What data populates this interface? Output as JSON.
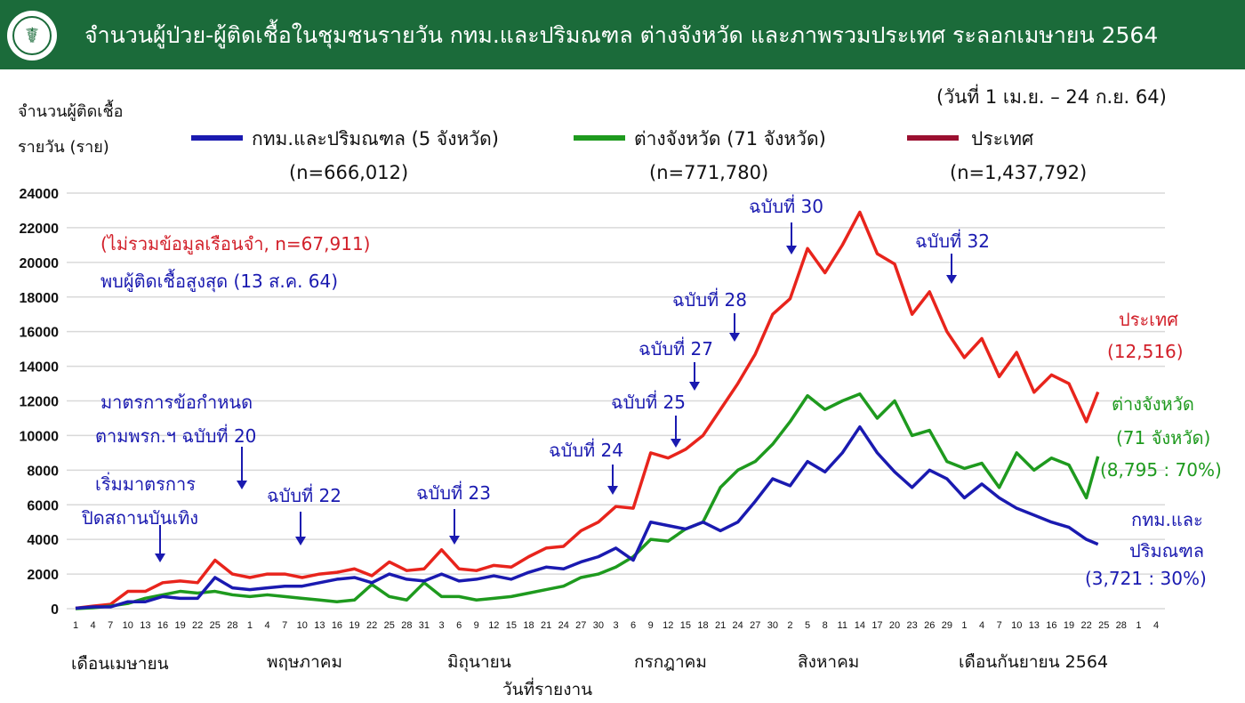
{
  "header": {
    "title": "จำนวนผู้ป่วย-ผู้ติดเชื้อในชุมชนรายวัน กทม.และปริมณฑล ต่างจังหวัด และภาพรวมประเทศ ระลอกเมษายน 2564",
    "logo_text": "กระทรวงสาธารณสุข MINISTRY OF PUBLIC HEALTH"
  },
  "period": "(วันที่ 1 เม.ย. – 24 ก.ย. 64)",
  "ylabel_line1": "จำนวนผู้ติดเชื้อ",
  "ylabel_line2": "รายวัน (ราย)",
  "legend": [
    {
      "label": "กทม.และปริมณฑล (5 จังหวัด)",
      "n": "(n=666,012)",
      "color": "#1a1ab0"
    },
    {
      "label": "ต่างจังหวัด (71 จังหวัด)",
      "n": "(n=771,780)",
      "color": "#1e9a1e"
    },
    {
      "label": "ประเทศ",
      "n": "(n=1,437,792)",
      "color": "#9b1030"
    }
  ],
  "notes": {
    "excluded": "(ไม่รวมข้อมูลเรือนจำ, n=67,911)",
    "peak": "พบผู้ติดเชื้อสูงสุด (13 ส.ค. 64)"
  },
  "annotations": {
    "m20_a": "มาตรการข้อกำหนด",
    "m20_b": "ตามพรก.ฯ ฉบับที่ 20",
    "ent_a": "เริ่มมาตรการ",
    "ent_b": "ปิดสถานบันเทิง",
    "a22": "ฉบับที่ 22",
    "a23": "ฉบับที่ 23",
    "a24": "ฉบับที่ 24",
    "a25": "ฉบับที่ 25",
    "a27": "ฉบับที่ 27",
    "a28": "ฉบับที่ 28",
    "a30": "ฉบับที่ 30",
    "a32": "ฉบับที่ 32"
  },
  "end_labels": {
    "national": "ประเทศ",
    "national_val": "(12,516)",
    "prov_a": "ต่างจังหวัด",
    "prov_b": "(71 จังหวัด)",
    "prov_val": "(8,795 : 70%)",
    "bkk_a": "กทม.และ",
    "bkk_b": "ปริมณฑล",
    "bkk_val": "(3,721 : 30%)"
  },
  "months": [
    "เดือนเมษายน",
    "พฤษภาคม",
    "มิถุนายน",
    "กรกฎาคม",
    "สิงหาคม",
    "เดือนกันยายน 2564"
  ],
  "xlabel": "วันที่รายงาน",
  "chart_data": {
    "type": "line",
    "title": "จำนวนผู้ป่วย-ผู้ติดเชื้อในชุมชนรายวัน กทม.และปริมณฑล ต่างจังหวัด และภาพรวมประเทศ ระลอกเมษายน 2564",
    "xlabel": "วันที่รายงาน",
    "ylabel": "จำนวนผู้ติดเชื้อรายวัน (ราย)",
    "ylim": [
      0,
      24000
    ],
    "yticks": [
      0,
      2000,
      4000,
      6000,
      8000,
      10000,
      12000,
      14000,
      16000,
      18000,
      20000,
      22000,
      24000
    ],
    "x_day_offsets_from_1_apr": [
      0,
      3,
      6,
      9,
      12,
      15,
      18,
      21,
      24,
      27,
      30,
      33,
      36,
      39,
      42,
      45,
      48,
      51,
      54,
      57,
      60,
      63,
      66,
      69,
      72,
      75,
      78,
      81,
      84,
      87,
      90,
      93,
      96,
      99,
      102,
      105,
      108,
      111,
      114,
      117,
      120,
      123,
      126,
      129,
      132,
      135,
      138,
      141,
      144,
      147,
      150,
      153,
      156,
      159,
      162,
      165,
      168,
      171,
      174,
      176
    ],
    "xtick_labels": [
      "1",
      "4",
      "7",
      "10",
      "13",
      "16",
      "19",
      "22",
      "25",
      "28",
      "1",
      "4",
      "7",
      "10",
      "13",
      "16",
      "19",
      "22",
      "25",
      "28",
      "31",
      "3",
      "6",
      "9",
      "12",
      "15",
      "18",
      "21",
      "24",
      "27",
      "30",
      "3",
      "6",
      "9",
      "12",
      "15",
      "18",
      "21",
      "24",
      "27",
      "30",
      "2",
      "5",
      "8",
      "11",
      "14",
      "17",
      "20",
      "23",
      "26",
      "29",
      "1",
      "4",
      "7",
      "10",
      "13",
      "16",
      "19",
      "22",
      "25",
      "28",
      "1",
      "4"
    ],
    "xlim_days": [
      0,
      186
    ],
    "grid": true,
    "series": [
      {
        "name": "ประเทศ",
        "color": "#e8241c",
        "values": [
          26,
          150,
          250,
          1000,
          1000,
          1500,
          1600,
          1500,
          2800,
          2000,
          1800,
          2000,
          2000,
          1800,
          2000,
          2100,
          2300,
          1900,
          2700,
          2200,
          2300,
          3400,
          2300,
          2200,
          2500,
          2400,
          3000,
          3500,
          3600,
          4500,
          5000,
          5900,
          5800,
          9000,
          8700,
          9200,
          10000,
          11500,
          13000,
          14700,
          17000,
          17900,
          20800,
          19400,
          21000,
          22900,
          20500,
          19900,
          17000,
          18300,
          16000,
          14500,
          15600,
          13400,
          14800,
          12500,
          13500,
          13000,
          10800,
          12516
        ]
      },
      {
        "name": "ต่างจังหวัด (71 จังหวัด)",
        "color": "#1e9a1e",
        "values": [
          0,
          50,
          150,
          300,
          600,
          800,
          1000,
          900,
          1000,
          800,
          700,
          800,
          700,
          600,
          500,
          400,
          500,
          1400,
          700,
          500,
          1500,
          700,
          700,
          500,
          600,
          700,
          900,
          1100,
          1300,
          1800,
          2000,
          2400,
          3000,
          4000,
          3900,
          4600,
          5000,
          7000,
          8000,
          8500,
          9500,
          10800,
          12300,
          11500,
          12000,
          12400,
          11000,
          12000,
          10000,
          10300,
          8500,
          8100,
          8400,
          7000,
          9000,
          8000,
          8700,
          8300,
          6400,
          8795
        ]
      },
      {
        "name": "กทม.และปริมณฑล (5 จังหวัด)",
        "color": "#1a1ab0",
        "values": [
          26,
          100,
          100,
          400,
          400,
          700,
          600,
          600,
          1800,
          1200,
          1100,
          1200,
          1300,
          1300,
          1500,
          1700,
          1800,
          1500,
          2000,
          1700,
          1600,
          2000,
          1600,
          1700,
          1900,
          1700,
          2100,
          2400,
          2300,
          2700,
          3000,
          3500,
          2800,
          5000,
          4800,
          4600,
          5000,
          4500,
          5000,
          6200,
          7500,
          7100,
          8500,
          7900,
          9000,
          10500,
          9000,
          7900,
          7000,
          8000,
          7500,
          6400,
          7200,
          6400,
          5800,
          5400,
          5000,
          4700,
          4000,
          3721
        ]
      }
    ]
  }
}
